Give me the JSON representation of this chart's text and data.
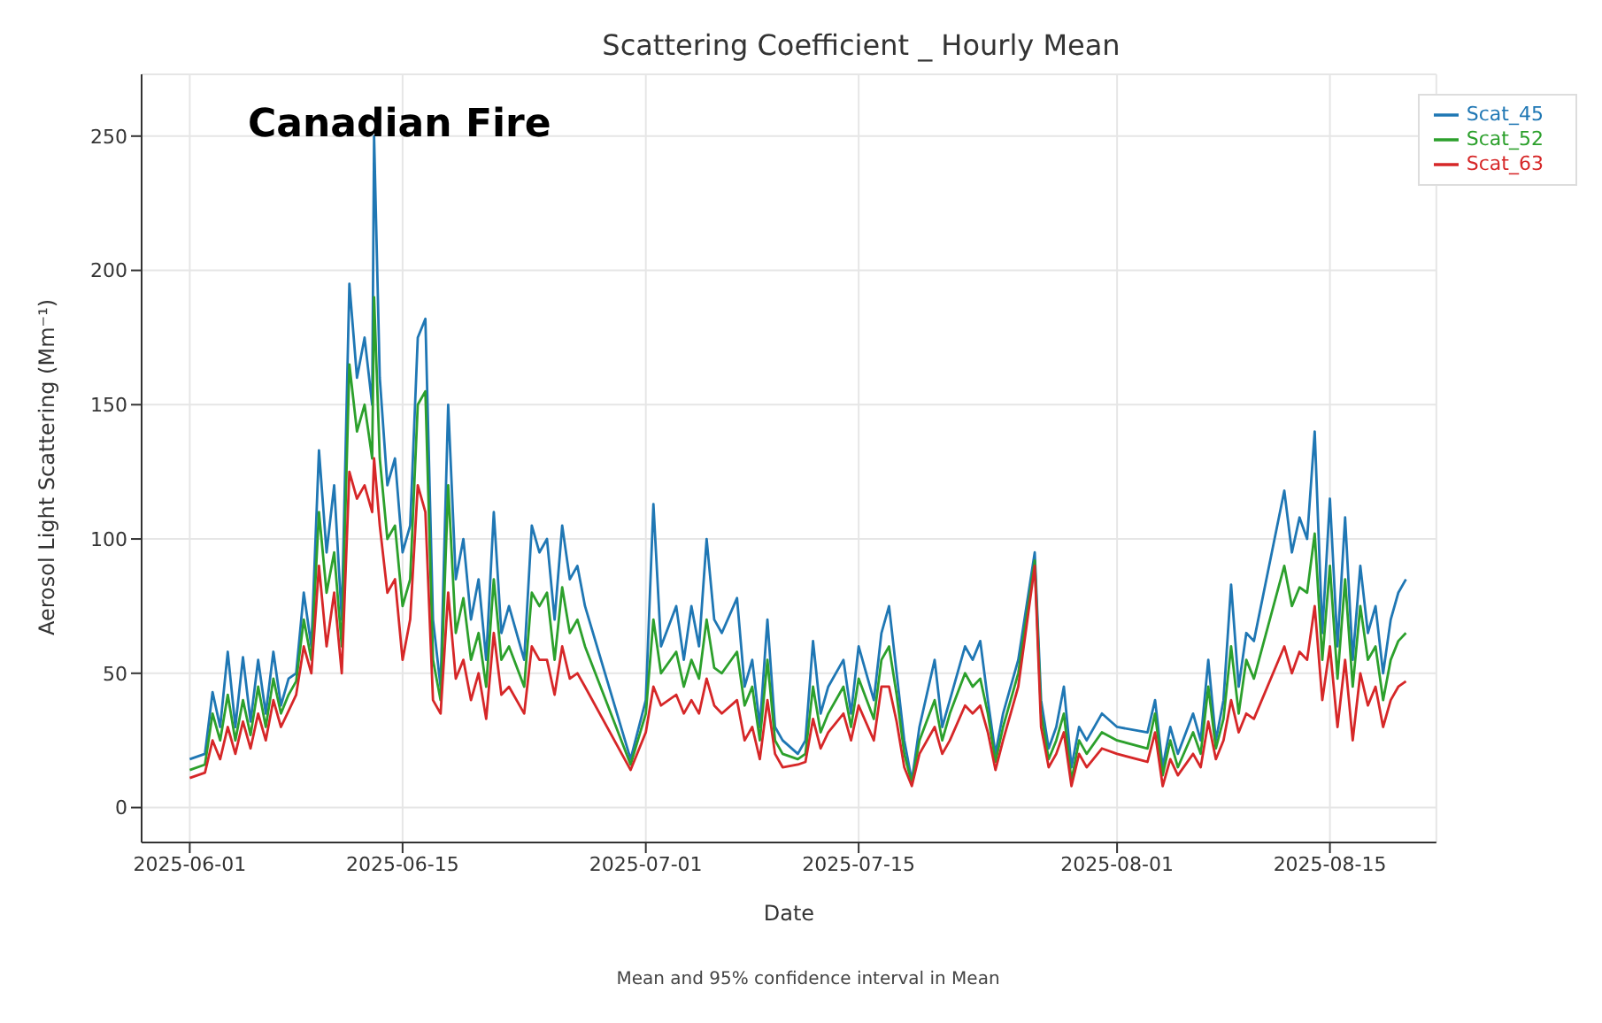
{
  "chart_data": {
    "type": "line",
    "title": "Scattering Coefficient _ Hourly Mean",
    "xlabel": "Date",
    "ylabel": "Aerosol Light Scattering (Mm⁻¹)",
    "annotations": [
      "Canadian Fire",
      "Mean and 95% confidence interval in Mean"
    ],
    "x": [
      "2025-06-01",
      "2025-06-02",
      "2025-06-02T12:00",
      "2025-06-03",
      "2025-06-03T12:00",
      "2025-06-04",
      "2025-06-04T12:00",
      "2025-06-05",
      "2025-06-05T12:00",
      "2025-06-06",
      "2025-06-06T12:00",
      "2025-06-07",
      "2025-06-07T12:00",
      "2025-06-08",
      "2025-06-08T12:00",
      "2025-06-09",
      "2025-06-09T12:00",
      "2025-06-10",
      "2025-06-10T12:00",
      "2025-06-11",
      "2025-06-11T12:00",
      "2025-06-12",
      "2025-06-12T12:00",
      "2025-06-13",
      "2025-06-13T03:00",
      "2025-06-13T12:00",
      "2025-06-14",
      "2025-06-14T12:00",
      "2025-06-15",
      "2025-06-15T12:00",
      "2025-06-16",
      "2025-06-16T12:00",
      "2025-06-17",
      "2025-06-17T12:00",
      "2025-06-18",
      "2025-06-18T12:00",
      "2025-06-19",
      "2025-06-19T12:00",
      "2025-06-20",
      "2025-06-20T12:00",
      "2025-06-21",
      "2025-06-21T12:00",
      "2025-06-22",
      "2025-06-23",
      "2025-06-23T12:00",
      "2025-06-24",
      "2025-06-24T12:00",
      "2025-06-25",
      "2025-06-25T12:00",
      "2025-06-26",
      "2025-06-26T12:00",
      "2025-06-27",
      "2025-06-30",
      "2025-07-01",
      "2025-07-01T12:00",
      "2025-07-02",
      "2025-07-03",
      "2025-07-03T12:00",
      "2025-07-04",
      "2025-07-04T12:00",
      "2025-07-05",
      "2025-07-05T12:00",
      "2025-07-06",
      "2025-07-07",
      "2025-07-07T12:00",
      "2025-07-08",
      "2025-07-08T12:00",
      "2025-07-09",
      "2025-07-09T12:00",
      "2025-07-10",
      "2025-07-11",
      "2025-07-11T12:00",
      "2025-07-12",
      "2025-07-12T12:00",
      "2025-07-13",
      "2025-07-14",
      "2025-07-14T12:00",
      "2025-07-15",
      "2025-07-16",
      "2025-07-16T12:00",
      "2025-07-17",
      "2025-07-17T12:00",
      "2025-07-18",
      "2025-07-18T12:00",
      "2025-07-19",
      "2025-07-20",
      "2025-07-20T12:00",
      "2025-07-21",
      "2025-07-22",
      "2025-07-22T12:00",
      "2025-07-23",
      "2025-07-23T12:00",
      "2025-07-24",
      "2025-07-24T12:00",
      "2025-07-25",
      "2025-07-25T12:00",
      "2025-07-26T14:00",
      "2025-07-27",
      "2025-07-27T12:00",
      "2025-07-28",
      "2025-07-28T12:00",
      "2025-07-29",
      "2025-07-29T12:00",
      "2025-07-30",
      "2025-07-31",
      "2025-08-01",
      "2025-08-03",
      "2025-08-03T12:00",
      "2025-08-04",
      "2025-08-04T12:00",
      "2025-08-05",
      "2025-08-06",
      "2025-08-06T12:00",
      "2025-08-07",
      "2025-08-07T12:00",
      "2025-08-08",
      "2025-08-08T12:00",
      "2025-08-09",
      "2025-08-09T12:00",
      "2025-08-10",
      "2025-08-12",
      "2025-08-12T12:00",
      "2025-08-13",
      "2025-08-13T12:00",
      "2025-08-14",
      "2025-08-14T12:00",
      "2025-08-15",
      "2025-08-15T12:00",
      "2025-08-16",
      "2025-08-16T12:00",
      "2025-08-17",
      "2025-08-17T12:00",
      "2025-08-18",
      "2025-08-18T12:00",
      "2025-08-19",
      "2025-08-19T12:00",
      "2025-08-20"
    ],
    "series": [
      {
        "name": "Scat_45",
        "color": "#1f77b4",
        "values": [
          18,
          20,
          43,
          30,
          58,
          30,
          56,
          32,
          55,
          35,
          58,
          38,
          48,
          50,
          80,
          60,
          133,
          95,
          120,
          70,
          195,
          160,
          175,
          150,
          250,
          160,
          120,
          130,
          95,
          105,
          175,
          182,
          70,
          45,
          150,
          85,
          100,
          70,
          85,
          55,
          110,
          65,
          75,
          55,
          105,
          95,
          100,
          70,
          105,
          85,
          90,
          75,
          18,
          40,
          113,
          60,
          75,
          55,
          75,
          60,
          100,
          70,
          65,
          78,
          45,
          55,
          30,
          70,
          30,
          25,
          20,
          25,
          62,
          35,
          45,
          55,
          35,
          60,
          40,
          65,
          75,
          50,
          25,
          10,
          30,
          55,
          30,
          40,
          60,
          55,
          62,
          40,
          20,
          35,
          45,
          55,
          95,
          40,
          22,
          30,
          45,
          15,
          30,
          25,
          35,
          30,
          28,
          40,
          15,
          30,
          20,
          35,
          25,
          55,
          25,
          40,
          83,
          45,
          65,
          62,
          118,
          95,
          108,
          100,
          140,
          65,
          115,
          60,
          108,
          55,
          90,
          65,
          75,
          50,
          70,
          80,
          85
        ]
      },
      {
        "name": "Scat_52",
        "color": "#2ca02c",
        "values": [
          14,
          16,
          35,
          25,
          42,
          25,
          40,
          27,
          45,
          30,
          48,
          35,
          42,
          47,
          70,
          55,
          110,
          80,
          95,
          60,
          165,
          140,
          150,
          130,
          190,
          130,
          100,
          105,
          75,
          85,
          150,
          155,
          55,
          40,
          120,
          65,
          78,
          55,
          65,
          45,
          85,
          55,
          60,
          45,
          80,
          75,
          80,
          55,
          82,
          65,
          70,
          60,
          16,
          35,
          70,
          50,
          58,
          45,
          55,
          48,
          70,
          52,
          50,
          58,
          38,
          45,
          25,
          55,
          25,
          20,
          18,
          20,
          45,
          28,
          35,
          45,
          30,
          48,
          33,
          55,
          60,
          42,
          20,
          9,
          25,
          40,
          25,
          35,
          50,
          45,
          48,
          35,
          17,
          30,
          40,
          50,
          92,
          35,
          18,
          25,
          35,
          10,
          25,
          20,
          28,
          25,
          22,
          35,
          12,
          25,
          15,
          28,
          20,
          45,
          22,
          33,
          60,
          35,
          55,
          48,
          90,
          75,
          82,
          80,
          102,
          55,
          90,
          48,
          85,
          45,
          75,
          55,
          60,
          40,
          55,
          62,
          65
        ]
      },
      {
        "name": "Scat_63",
        "color": "#d62728",
        "values": [
          11,
          13,
          25,
          18,
          30,
          20,
          32,
          22,
          35,
          25,
          40,
          30,
          36,
          42,
          60,
          50,
          90,
          60,
          80,
          50,
          125,
          115,
          120,
          110,
          130,
          105,
          80,
          85,
          55,
          70,
          120,
          110,
          40,
          35,
          80,
          48,
          55,
          40,
          50,
          33,
          65,
          42,
          45,
          35,
          60,
          55,
          55,
          42,
          60,
          48,
          50,
          45,
          14,
          28,
          45,
          38,
          42,
          35,
          40,
          35,
          48,
          38,
          35,
          40,
          25,
          30,
          18,
          40,
          20,
          15,
          16,
          17,
          33,
          22,
          28,
          35,
          25,
          38,
          25,
          45,
          45,
          32,
          15,
          8,
          20,
          30,
          20,
          25,
          38,
          35,
          38,
          28,
          14,
          25,
          35,
          45,
          90,
          30,
          15,
          20,
          28,
          8,
          20,
          15,
          22,
          20,
          17,
          28,
          8,
          18,
          12,
          20,
          15,
          32,
          18,
          25,
          40,
          28,
          35,
          33,
          60,
          50,
          58,
          55,
          75,
          40,
          60,
          30,
          55,
          25,
          50,
          38,
          45,
          30,
          40,
          45,
          47
        ]
      }
    ],
    "xlim": [
      "2025-05-28T20:00",
      "2025-08-22"
    ],
    "xticks": [
      "2025-06-01",
      "2025-06-15",
      "2025-07-01",
      "2025-07-15",
      "2025-08-01",
      "2025-08-15"
    ],
    "ylim": [
      -13,
      273
    ],
    "yticks": [
      0,
      50,
      100,
      150,
      200,
      250
    ],
    "grid": true,
    "legend": "top right"
  }
}
